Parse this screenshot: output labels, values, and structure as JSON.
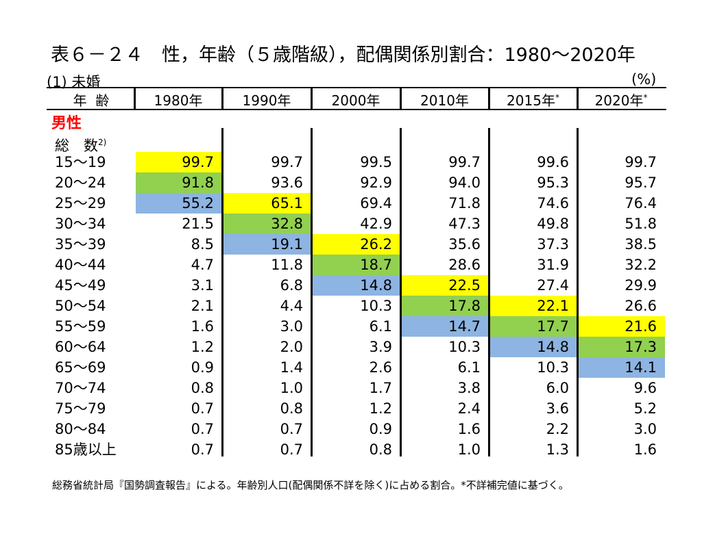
{
  "title": "表６－２４　性，年齢（５歳階級），配偶関係別割合：1980～2020年",
  "subtitle": "(1) 未婚",
  "unit": "(%)",
  "header": {
    "age_label": "年  齢",
    "years": [
      "1980年",
      "1990年",
      "2000年",
      "2010年",
      "2015年",
      "2020年"
    ],
    "year_marks": [
      "",
      "",
      "",
      "",
      "*",
      "*"
    ]
  },
  "section_label": "男性",
  "total_label": "総　数",
  "total_note_mark": "2)",
  "rows": [
    {
      "age": "15～19",
      "values": [
        "99.7",
        "99.7",
        "99.5",
        "99.7",
        "99.6",
        "99.7"
      ]
    },
    {
      "age": "20～24",
      "values": [
        "91.8",
        "93.6",
        "92.9",
        "94.0",
        "95.3",
        "95.7"
      ]
    },
    {
      "age": "25～29",
      "values": [
        "55.2",
        "65.1",
        "69.4",
        "71.8",
        "74.6",
        "76.4"
      ]
    },
    {
      "age": "30～34",
      "values": [
        "21.5",
        "32.8",
        "42.9",
        "47.3",
        "49.8",
        "51.8"
      ]
    },
    {
      "age": "35～39",
      "values": [
        "8.5",
        "19.1",
        "26.2",
        "35.6",
        "37.3",
        "38.5"
      ]
    },
    {
      "age": "40～44",
      "values": [
        "4.7",
        "11.8",
        "18.7",
        "28.6",
        "31.9",
        "32.2"
      ]
    },
    {
      "age": "45～49",
      "values": [
        "3.1",
        "6.8",
        "14.8",
        "22.5",
        "27.4",
        "29.9"
      ]
    },
    {
      "age": "50～54",
      "values": [
        "2.1",
        "4.4",
        "10.3",
        "17.8",
        "22.1",
        "26.6"
      ]
    },
    {
      "age": "55～59",
      "values": [
        "1.6",
        "3.0",
        "6.1",
        "14.7",
        "17.7",
        "21.6"
      ]
    },
    {
      "age": "60～64",
      "values": [
        "1.2",
        "2.0",
        "3.9",
        "10.3",
        "14.8",
        "17.3"
      ]
    },
    {
      "age": "65～69",
      "values": [
        "0.9",
        "1.4",
        "2.6",
        "6.1",
        "10.3",
        "14.1"
      ]
    },
    {
      "age": "70～74",
      "values": [
        "0.8",
        "1.0",
        "1.7",
        "3.8",
        "6.0",
        "9.6"
      ]
    },
    {
      "age": "75～79",
      "values": [
        "0.7",
        "0.8",
        "1.2",
        "2.4",
        "3.6",
        "5.2"
      ]
    },
    {
      "age": "80～84",
      "values": [
        "0.7",
        "0.7",
        "0.9",
        "1.6",
        "2.2",
        "3.0"
      ]
    },
    {
      "age": "85歳以上",
      "values": [
        "0.7",
        "0.7",
        "0.8",
        "1.0",
        "1.3",
        "1.6"
      ]
    }
  ],
  "highlight_colors": {
    "yellow": "#ffff00",
    "green": "#92d050",
    "blue": "#8db4e2"
  },
  "highlighted_cells": [
    {
      "row": 0,
      "col": 0,
      "color": "yellow"
    },
    {
      "row": 1,
      "col": 0,
      "color": "green"
    },
    {
      "row": 2,
      "col": 0,
      "color": "blue"
    },
    {
      "row": 2,
      "col": 1,
      "color": "yellow"
    },
    {
      "row": 3,
      "col": 1,
      "color": "green"
    },
    {
      "row": 4,
      "col": 1,
      "color": "blue"
    },
    {
      "row": 4,
      "col": 2,
      "color": "yellow"
    },
    {
      "row": 5,
      "col": 2,
      "color": "green"
    },
    {
      "row": 6,
      "col": 2,
      "color": "blue"
    },
    {
      "row": 6,
      "col": 3,
      "color": "yellow"
    },
    {
      "row": 7,
      "col": 3,
      "color": "green"
    },
    {
      "row": 8,
      "col": 3,
      "color": "blue"
    },
    {
      "row": 7,
      "col": 4,
      "color": "yellow"
    },
    {
      "row": 8,
      "col": 4,
      "color": "green"
    },
    {
      "row": 9,
      "col": 4,
      "color": "blue"
    },
    {
      "row": 8,
      "col": 5,
      "color": "yellow"
    },
    {
      "row": 9,
      "col": 5,
      "color": "green"
    },
    {
      "row": 10,
      "col": 5,
      "color": "blue"
    }
  ],
  "note": "総務省統計局『国勢調査報告』による。年齢別人口(配偶関係不詳を除く)に占める割合。*不詳補完値に基づく。"
}
